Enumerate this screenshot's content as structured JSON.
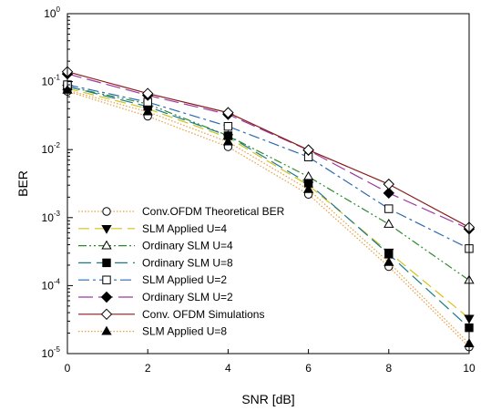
{
  "chart_data": {
    "type": "line",
    "xlabel": "SNR [dB]",
    "ylabel": "BER",
    "xlim": [
      0,
      10
    ],
    "ylim": [
      1e-05,
      1
    ],
    "yscale": "log",
    "grid": false,
    "legend_position": "bottom-left",
    "x_ticks": [
      "0",
      "2",
      "4",
      "6",
      "8",
      "10"
    ],
    "y_ticks": [
      {
        "base": "10",
        "exp": "-5",
        "value": 1e-05
      },
      {
        "base": "10",
        "exp": "-4",
        "value": 0.0001
      },
      {
        "base": "10",
        "exp": "-3",
        "value": 0.001
      },
      {
        "base": "10",
        "exp": "-2",
        "value": 0.01
      },
      {
        "base": "10",
        "exp": "-1",
        "value": 0.1
      },
      {
        "base": "10",
        "exp": "0",
        "value": 1
      }
    ],
    "x": [
      0,
      2,
      4,
      6,
      8,
      10
    ],
    "series": [
      {
        "name": "Conv.OFDM Theoretical BER",
        "color": "#e8a040",
        "dash": "1.5,2",
        "marker": "circle-open",
        "values": [
          0.072,
          0.031,
          0.011,
          0.0022,
          0.00019,
          1.25e-05
        ]
      },
      {
        "name": "SLM Applied U=4",
        "color": "#d4c21a",
        "dash": "12,6",
        "marker": "triangle-down-filled",
        "values": [
          0.08,
          0.04,
          0.015,
          0.003,
          0.00031,
          3.3e-05
        ]
      },
      {
        "name": "Ordinary SLM U=4",
        "color": "#2c8a2c",
        "dash": "9,3,2,3,2,3",
        "marker": "triangle-up-open",
        "values": [
          0.085,
          0.047,
          0.016,
          0.004,
          0.0008,
          0.00012
        ]
      },
      {
        "name": "Ordinary SLM U=8",
        "color": "#1a7a8a",
        "dash": "14,6",
        "marker": "square-filled",
        "values": [
          0.085,
          0.043,
          0.016,
          0.0032,
          0.00029,
          2.4e-05
        ]
      },
      {
        "name": "SLM Applied U=2",
        "color": "#2a6ab0",
        "dash": "12,4,3,4",
        "marker": "square-open",
        "values": [
          0.09,
          0.05,
          0.022,
          0.0078,
          0.00135,
          0.00035
        ]
      },
      {
        "name": "Ordinary SLM U=2",
        "color": "#9a3aa0",
        "dash": "16,6",
        "marker": "diamond-filled",
        "values": [
          0.13,
          0.063,
          0.033,
          0.0098,
          0.0023,
          0.00068
        ]
      },
      {
        "name": "Conv. OFDM Simulations",
        "color": "#8a1a1a",
        "dash": "",
        "marker": "diamond-open",
        "values": [
          0.14,
          0.067,
          0.035,
          0.0099,
          0.0031,
          0.00072
        ]
      },
      {
        "name": "SLM Applied U=8",
        "color": "#e8a040",
        "dash": "1.5,2",
        "marker": "triangle-up-filled",
        "values": [
          0.075,
          0.036,
          0.013,
          0.0026,
          0.00022,
          1.4e-05
        ]
      }
    ]
  }
}
